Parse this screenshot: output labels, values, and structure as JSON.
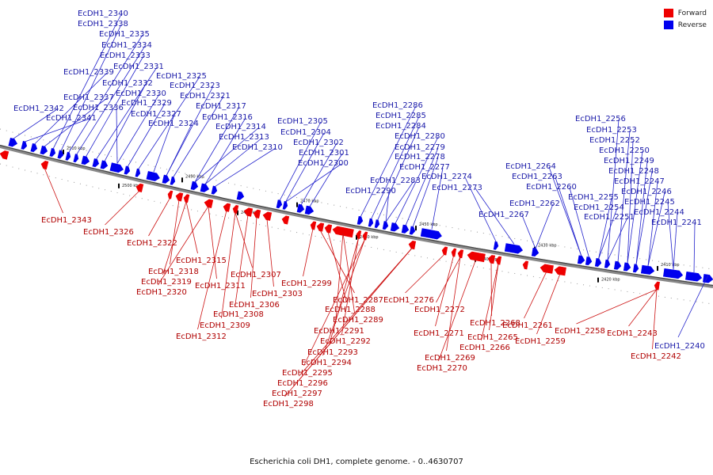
{
  "legend": {
    "items": [
      {
        "label": "Forward",
        "color": "#ee0000"
      },
      {
        "label": "Reverse",
        "color": "#0000ee"
      }
    ]
  },
  "colors": {
    "forward": "#ee0000",
    "reverse": "#0000ee",
    "backbone": "#888888"
  },
  "caption": "Escherichia coli DH1, complete genome. - 0..4630707",
  "ticks": [
    "2510 kbp",
    "2500 kbp",
    "2490 kbp",
    "2480 kbp",
    "2470 kbp",
    "2460 kbp",
    "2450 kbp",
    "2440 kbp",
    "2430 kbp",
    "2420 kbp",
    "2410 kbp"
  ],
  "reverse_labels": [
    "EcDH1_2340",
    "EcDH1_2338",
    "EcDH1_2335",
    "EcDH1_2334",
    "EcDH1_2333",
    "EcDH1_2331",
    "EcDH1_2339",
    "EcDH1_2325",
    "EcDH1_2332",
    "EcDH1_2323",
    "EcDH1_2330",
    "EcDH1_2321",
    "EcDH1_2337",
    "EcDH1_2329",
    "EcDH1_2317",
    "EcDH1_2342",
    "EcDH1_2336",
    "EcDH1_2327",
    "EcDH1_2316",
    "EcDH1_2341",
    "EcDH1_2324",
    "EcDH1_2314",
    "EcDH1_2313",
    "EcDH1_2310",
    "EcDH1_2305",
    "EcDH1_2304",
    "EcDH1_2302",
    "EcDH1_2301",
    "EcDH1_2300",
    "EcDH1_2286",
    "EcDH1_2285",
    "EcDH1_2284",
    "EcDH1_2280",
    "EcDH1_2279",
    "EcDH1_2278",
    "EcDH1_2277",
    "EcDH1_2274",
    "EcDH1_2283",
    "EcDH1_2273",
    "EcDH1_2290",
    "EcDH1_2256",
    "EcDH1_2253",
    "EcDH1_2252",
    "EcDH1_2250",
    "EcDH1_2249",
    "EcDH1_2248",
    "EcDH1_2264",
    "EcDH1_2263",
    "EcDH1_2247",
    "EcDH1_2260",
    "EcDH1_2246",
    "EcDH1_2255",
    "EcDH1_2245",
    "EcDH1_2262",
    "EcDH1_2254",
    "EcDH1_2244",
    "EcDH1_2267",
    "EcDH1_2251",
    "EcDH1_2241",
    "EcDH1_2240"
  ],
  "forward_labels": [
    "EcDH1_2343",
    "EcDH1_2326",
    "EcDH1_2322",
    "EcDH1_2315",
    "EcDH1_2318",
    "EcDH1_2319",
    "EcDH1_2311",
    "EcDH1_2307",
    "EcDH1_2320",
    "EcDH1_2299",
    "EcDH1_2303",
    "EcDH1_2306",
    "EcDH1_2308",
    "EcDH1_2309",
    "EcDH1_2312",
    "EcDH1_2287",
    "EcDH1_2288",
    "EcDH1_2289",
    "EcDH1_2291",
    "EcDH1_2292",
    "EcDH1_2293",
    "EcDH1_2294",
    "EcDH1_2295",
    "EcDH1_2296",
    "EcDH1_2297",
    "EcDH1_2298",
    "EcDH1_2276",
    "EcDH1_2272",
    "EcDH1_2271",
    "EcDH1_2268",
    "EcDH1_2265",
    "EcDH1_2266",
    "EcDH1_2269",
    "EcDH1_2270",
    "EcDH1_2261",
    "EcDH1_2259",
    "EcDH1_2258",
    "EcDH1_2243",
    "EcDH1_2242"
  ]
}
